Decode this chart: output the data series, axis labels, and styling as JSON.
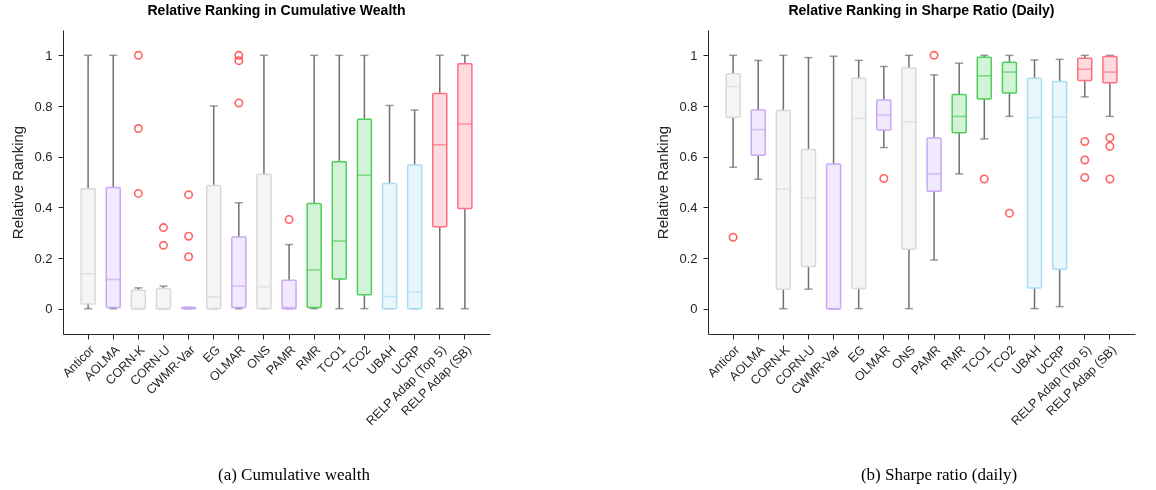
{
  "chart_data": [
    {
      "type": "box",
      "title": "Relative Ranking in Cumulative Wealth",
      "ylabel": "Relative Ranking",
      "annotations": [
        "(a) Cumulative wealth"
      ],
      "categories": [
        "Anticor",
        "AOLMA",
        "CORN-K",
        "CORN-U",
        "CWMR-Var",
        "EG",
        "OLMAR",
        "ONS",
        "PAMR",
        "RMR",
        "TCO1",
        "TCO2",
        "UBAH",
        "UCRP",
        "RELP Adap (Top 5)",
        "RELP Adap (SB)"
      ],
      "colors": [
        "#d9d9d9",
        "#c9a8f5",
        "#d9d9d9",
        "#d9d9d9",
        "#c9a8f5",
        "#d9d9d9",
        "#c9a8f5",
        "#d9d9d9",
        "#c9a8f5",
        "#4fcf5a",
        "#4fcf5a",
        "#4fcf5a",
        "#a8def5",
        "#a8def5",
        "#ff6f80",
        "#ff6f80"
      ],
      "ylim": [
        -0.1,
        1.1
      ],
      "yticks": [
        0,
        0.2,
        0.4,
        0.6,
        0.8,
        1
      ],
      "boxes": [
        {
          "low": 0,
          "q1": 0.018,
          "median": 0.138,
          "q3": 0.473,
          "high": 1
        },
        {
          "low": 0,
          "q1": 0.005,
          "median": 0.115,
          "q3": 0.478,
          "high": 1
        },
        {
          "low": 0,
          "q1": 0,
          "median": 0,
          "q3": 0.073,
          "high": 0.082,
          "outliers": [
            1,
            0.711,
            0.455
          ]
        },
        {
          "low": 0,
          "q1": 0,
          "median": 0,
          "q3": 0.08,
          "high": 0.089,
          "outliers": [
            0.32,
            0.25
          ]
        },
        {
          "low": 0,
          "q1": 0,
          "median": 0.002,
          "q3": 0.005,
          "high": 0.005,
          "outliers": [
            0.45,
            0.286,
            0.205
          ]
        },
        {
          "low": 0,
          "q1": 0,
          "median": 0.046,
          "q3": 0.486,
          "high": 0.8
        },
        {
          "low": 0,
          "q1": 0.005,
          "median": 0.089,
          "q3": 0.283,
          "high": 0.418,
          "outliers": [
            1,
            0.979,
            0.812
          ]
        },
        {
          "low": 0,
          "q1": 0,
          "median": 0.086,
          "q3": 0.531,
          "high": 1
        },
        {
          "low": 0,
          "q1": 0,
          "median": 0.005,
          "q3": 0.112,
          "high": 0.253,
          "outliers": [
            0.352
          ]
        },
        {
          "low": 0,
          "q1": 0.005,
          "median": 0.153,
          "q3": 0.415,
          "high": 1
        },
        {
          "low": 0,
          "q1": 0.117,
          "median": 0.267,
          "q3": 0.58,
          "high": 1
        },
        {
          "low": 0,
          "q1": 0.055,
          "median": 0.527,
          "q3": 0.748,
          "high": 1
        },
        {
          "low": 0,
          "q1": 0,
          "median": 0.048,
          "q3": 0.494,
          "high": 0.802
        },
        {
          "low": 0,
          "q1": 0,
          "median": 0.065,
          "q3": 0.567,
          "high": 0.784
        },
        {
          "low": 0,
          "q1": 0.323,
          "median": 0.647,
          "q3": 0.849,
          "high": 1
        },
        {
          "low": 0,
          "q1": 0.395,
          "median": 0.729,
          "q3": 0.967,
          "high": 1
        }
      ]
    },
    {
      "type": "box",
      "title": "Relative Ranking in Sharpe Ratio (Daily)",
      "ylabel": "Relative Ranking",
      "annotations": [
        "(b) Sharpe ratio (daily)"
      ],
      "categories": [
        "Anticor",
        "AOLMA",
        "CORN-K",
        "CORN-U",
        "CWMR-Var",
        "EG",
        "OLMAR",
        "ONS",
        "PAMR",
        "RMR",
        "TCO1",
        "TCO2",
        "UBAH",
        "UCRP",
        "RELP Adap (Top 5)",
        "RELP Adap (SB)"
      ],
      "colors": [
        "#d9d9d9",
        "#c9a8f5",
        "#d9d9d9",
        "#d9d9d9",
        "#c9a8f5",
        "#d9d9d9",
        "#c9a8f5",
        "#d9d9d9",
        "#c9a8f5",
        "#4fcf5a",
        "#4fcf5a",
        "#4fcf5a",
        "#a8def5",
        "#a8def5",
        "#ff6f80",
        "#ff6f80"
      ],
      "ylim": [
        -0.1,
        1.1
      ],
      "yticks": [
        0,
        0.2,
        0.4,
        0.6,
        0.8,
        1
      ],
      "boxes": [
        {
          "low": 0.558,
          "q1": 0.756,
          "median": 0.877,
          "q3": 0.927,
          "high": 1,
          "outliers": [
            0.282
          ]
        },
        {
          "low": 0.511,
          "q1": 0.606,
          "median": 0.707,
          "q3": 0.784,
          "high": 0.98
        },
        {
          "low": 0,
          "q1": 0.077,
          "median": 0.472,
          "q3": 0.782,
          "high": 1
        },
        {
          "low": 0.077,
          "q1": 0.166,
          "median": 0.437,
          "q3": 0.628,
          "high": 0.991
        },
        {
          "low": 0,
          "q1": 0,
          "median": 0,
          "q3": 0.571,
          "high": 0.996
        },
        {
          "low": 0,
          "q1": 0.08,
          "median": 0.751,
          "q3": 0.91,
          "high": 0.98
        },
        {
          "low": 0.636,
          "q1": 0.705,
          "median": 0.764,
          "q3": 0.824,
          "high": 0.956,
          "outliers": [
            0.514
          ]
        },
        {
          "low": 0,
          "q1": 0.235,
          "median": 0.737,
          "q3": 0.95,
          "high": 1
        },
        {
          "low": 0.192,
          "q1": 0.463,
          "median": 0.532,
          "q3": 0.674,
          "high": 0.923,
          "outliers": [
            1
          ]
        },
        {
          "low": 0.532,
          "q1": 0.694,
          "median": 0.759,
          "q3": 0.845,
          "high": 0.969
        },
        {
          "low": 0.67,
          "q1": 0.828,
          "median": 0.919,
          "q3": 0.992,
          "high": 1,
          "outliers": [
            0.512
          ]
        },
        {
          "low": 0.759,
          "q1": 0.851,
          "median": 0.934,
          "q3": 0.973,
          "high": 1,
          "outliers": [
            0.377
          ]
        },
        {
          "low": 0,
          "q1": 0.082,
          "median": 0.754,
          "q3": 0.91,
          "high": 0.982
        },
        {
          "low": 0.008,
          "q1": 0.156,
          "median": 0.756,
          "q3": 0.897,
          "high": 0.984
        },
        {
          "low": 0.836,
          "q1": 0.901,
          "median": 0.945,
          "q3": 0.988,
          "high": 1,
          "outliers": [
            0.66,
            0.587,
            0.518
          ]
        },
        {
          "low": 0.759,
          "q1": 0.892,
          "median": 0.934,
          "q3": 0.995,
          "high": 1,
          "outliers": [
            0.675,
            0.641,
            0.512
          ]
        }
      ]
    }
  ]
}
